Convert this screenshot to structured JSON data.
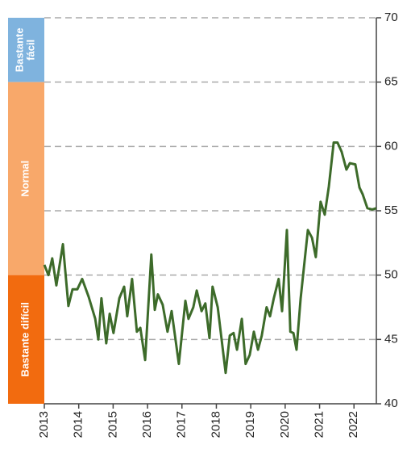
{
  "chart_data": {
    "type": "line",
    "x": [
      2013.0,
      2013.12,
      2013.23,
      2013.35,
      2013.54,
      2013.7,
      2013.82,
      2013.96,
      2014.1,
      2014.29,
      2014.48,
      2014.57,
      2014.66,
      2014.8,
      2014.9,
      2015.01,
      2015.18,
      2015.32,
      2015.41,
      2015.55,
      2015.69,
      2015.79,
      2015.93,
      2016.11,
      2016.21,
      2016.3,
      2016.44,
      2016.58,
      2016.7,
      2016.91,
      2017.1,
      2017.19,
      2017.33,
      2017.43,
      2017.57,
      2017.68,
      2017.8,
      2017.89,
      2018.04,
      2018.27,
      2018.39,
      2018.5,
      2018.6,
      2018.74,
      2018.85,
      2018.97,
      2019.09,
      2019.21,
      2019.32,
      2019.46,
      2019.56,
      2019.67,
      2019.81,
      2019.91,
      2020.05,
      2020.15,
      2020.24,
      2020.33,
      2020.45,
      2020.66,
      2020.78,
      2020.89,
      2021.03,
      2021.15,
      2021.27,
      2021.41,
      2021.52,
      2021.64,
      2021.78,
      2021.88,
      2022.04,
      2022.16,
      2022.25,
      2022.39,
      2022.53,
      2022.65
    ],
    "series": [
      {
        "color": "#3d6b2a",
        "values": [
          50.8,
          50.0,
          51.3,
          49.2,
          52.4,
          47.6,
          48.9,
          48.9,
          49.7,
          48.3,
          46.6,
          45.0,
          48.2,
          44.7,
          47.0,
          45.5,
          48.2,
          49.1,
          46.8,
          49.7,
          45.6,
          45.9,
          43.4,
          51.6,
          47.3,
          48.5,
          47.7,
          45.6,
          47.2,
          43.1,
          48.0,
          46.6,
          47.5,
          48.8,
          47.2,
          47.8,
          45.1,
          49.1,
          47.5,
          42.4,
          45.3,
          45.5,
          44.2,
          46.6,
          43.1,
          43.8,
          45.6,
          44.2,
          45.3,
          47.5,
          46.8,
          48.2,
          49.7,
          47.2,
          53.5,
          45.6,
          45.5,
          44.2,
          48.2,
          53.5,
          52.9,
          51.4,
          55.7,
          54.7,
          56.9,
          60.3,
          60.3,
          59.6,
          58.2,
          58.7,
          58.6,
          56.8,
          56.3,
          55.2,
          55.1,
          55.2
        ]
      }
    ],
    "xlim": [
      2013,
      2022.65
    ],
    "xticks": [
      2013,
      2014,
      2015,
      2016,
      2017,
      2018,
      2019,
      2020,
      2021,
      2022
    ],
    "ylim": [
      40,
      70
    ],
    "yticks": [
      40,
      45,
      50,
      55,
      60,
      65,
      70
    ],
    "grid": true,
    "bands": [
      {
        "lines": [
          "Bastante",
          "fácil"
        ],
        "from": 65,
        "to": 70,
        "color": "#7fb3de"
      },
      {
        "lines": [
          "Normal"
        ],
        "from": 50,
        "to": 65,
        "color": "#f8a86a"
      },
      {
        "lines": [
          "Bastante difícil"
        ],
        "from": 40,
        "to": 50,
        "color": "#f26b0f"
      }
    ]
  }
}
